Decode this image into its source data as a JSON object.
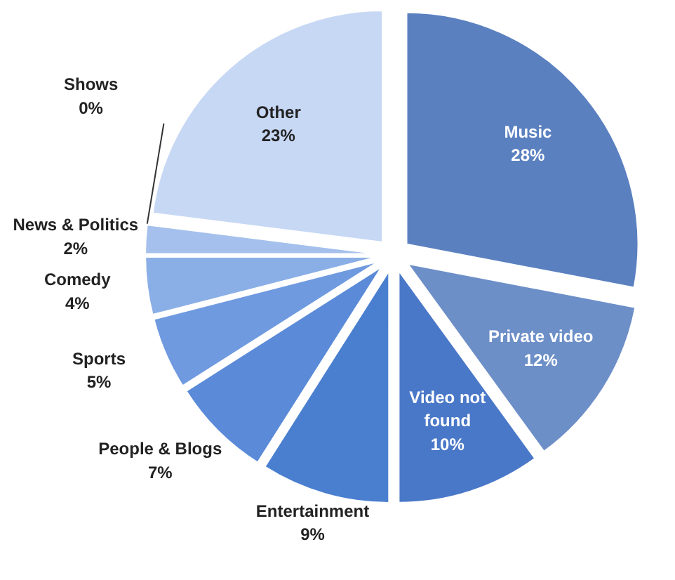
{
  "chart_data": {
    "type": "pie",
    "categories": [
      "Music",
      "Private video",
      "Video not found",
      "Entertainment",
      "People & Blogs",
      "Sports",
      "Comedy",
      "News & Politics",
      "Shows",
      "Other"
    ],
    "values": [
      28,
      12,
      10,
      9,
      7,
      5,
      4,
      2,
      0,
      23
    ],
    "colors": [
      "#5a80c0",
      "#6d8fc8",
      "#4a78c8",
      "#4a7fd0",
      "#5a8ad8",
      "#6f9ae0",
      "#8aaee6",
      "#a5c0ec",
      "#b8cdf0",
      "#c7d8f5"
    ],
    "value_labels": [
      "28%",
      "12%",
      "10%",
      "9%",
      "7%",
      "5%",
      "4%",
      "2%",
      "0%",
      "23%"
    ]
  }
}
